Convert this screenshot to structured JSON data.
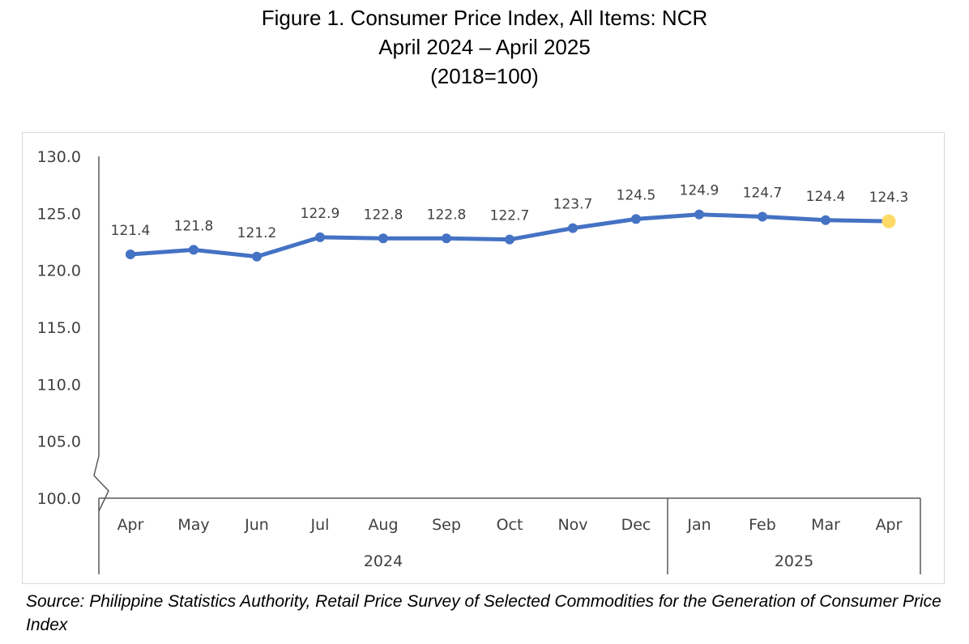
{
  "title": {
    "line1": "Figure 1. Consumer Price Index, All Items: NCR",
    "line2": "April 2024 – April 2025",
    "line3": "(2018=100)"
  },
  "chart_data": {
    "type": "line",
    "categories": [
      "Apr",
      "May",
      "Jun",
      "Jul",
      "Aug",
      "Sep",
      "Oct",
      "Nov",
      "Dec",
      "Jan",
      "Feb",
      "Mar",
      "Apr"
    ],
    "groups": [
      {
        "label": "2024",
        "start": 0,
        "end": 8
      },
      {
        "label": "2025",
        "start": 9,
        "end": 12
      }
    ],
    "series": [
      {
        "values": [
          121.4,
          121.8,
          121.2,
          122.9,
          122.8,
          122.8,
          122.7,
          123.7,
          124.5,
          124.9,
          124.7,
          124.4,
          124.3
        ],
        "labels": [
          "121.4",
          "121.8",
          "121.2",
          "122.9",
          "122.8",
          "122.8",
          "122.7",
          "123.7",
          "124.5",
          "124.9",
          "124.7",
          "124.4",
          "124.3"
        ],
        "color": "#4472C4",
        "highlight_last_color": "#FFD966"
      }
    ],
    "ylim": [
      100,
      130
    ],
    "yticks": [
      "100.0",
      "105.0",
      "110.0",
      "115.0",
      "120.0",
      "125.0",
      "130.0"
    ],
    "axis_break": true,
    "grid": false,
    "legend": "none",
    "xlabel": "",
    "ylabel": ""
  },
  "source": "Source: Philippine Statistics Authority, Retail Price Survey of Selected Commodities for the Generation of Consumer Price Index"
}
